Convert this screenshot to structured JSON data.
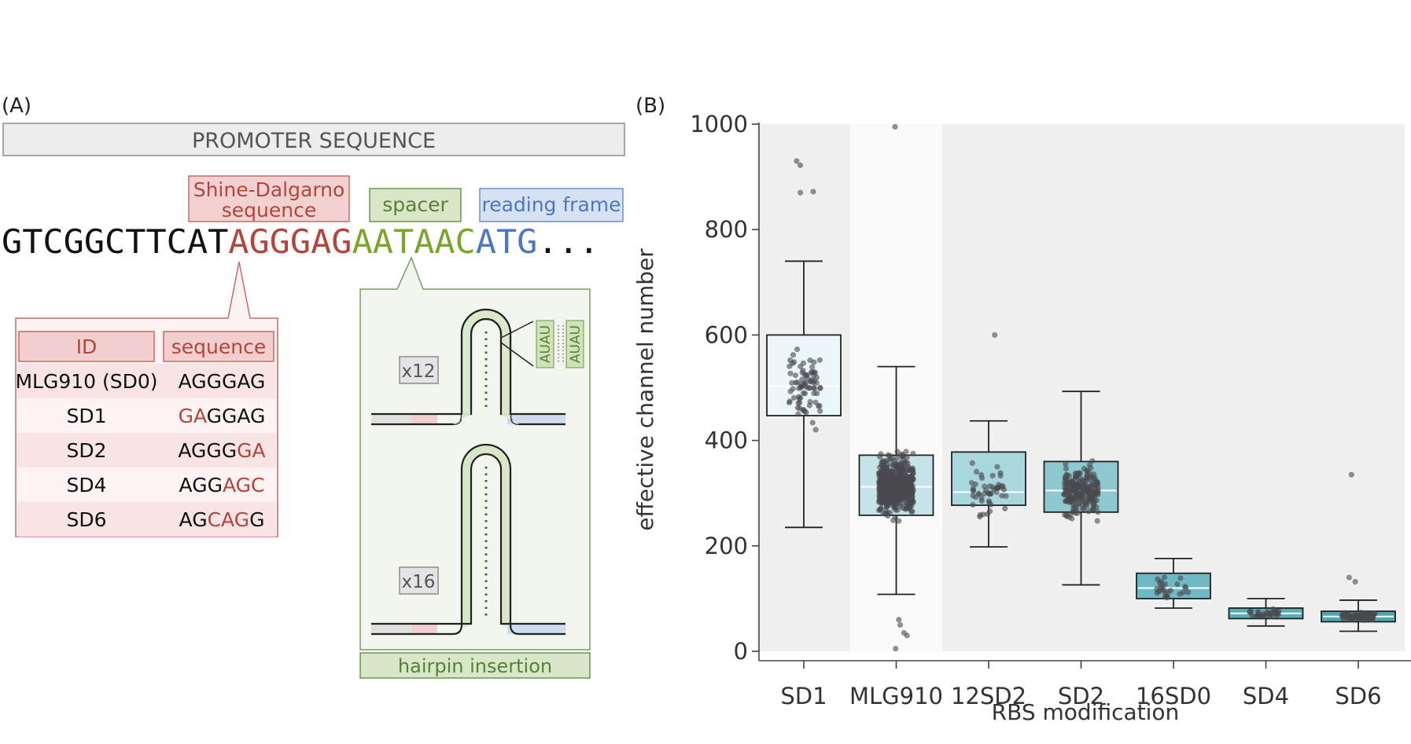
{
  "panel_a": {
    "label": "(A)",
    "promoter": "PROMOTER SEQUENCE",
    "sd_label": [
      "Shine-Dalgarno",
      "sequence"
    ],
    "spacer_label": "spacer",
    "frame_label": "reading frame",
    "sequence_parts": [
      {
        "text": "GTCGGCTTCAT",
        "color": "#111111"
      },
      {
        "text": "AGGGAG",
        "color": "#b5443c"
      },
      {
        "text": "AATAAC",
        "color": "#7aa62a"
      },
      {
        "text": "ATG",
        "color": "#4b77c4"
      },
      {
        "text": "...",
        "color": "#111111"
      }
    ],
    "table": {
      "col_id": "ID",
      "col_seq": "sequence",
      "rows": [
        {
          "id": "MLG910 (SD0)",
          "seq": [
            {
              "t": "AGGGAG",
              "mut": false
            }
          ]
        },
        {
          "id": "SD1",
          "seq": [
            {
              "t": "GA",
              "mut": true
            },
            {
              "t": "GGAG",
              "mut": false
            }
          ]
        },
        {
          "id": "SD2",
          "seq": [
            {
              "t": "AGGG",
              "mut": false
            },
            {
              "t": "GA",
              "mut": true
            }
          ]
        },
        {
          "id": "SD4",
          "seq": [
            {
              "t": "AGG",
              "mut": false
            },
            {
              "t": "AGC",
              "mut": true
            }
          ]
        },
        {
          "id": "SD6",
          "seq": [
            {
              "t": "AG",
              "mut": false
            },
            {
              "t": "CAG",
              "mut": true
            },
            {
              "t": "G",
              "mut": false
            }
          ]
        }
      ]
    },
    "hairpin_small_label": "x12",
    "hairpin_large_label": "x16",
    "pair_top": "AUAU",
    "pair_bottom": "AUAU",
    "hairpin_caption": "hairpin insertion",
    "colors": {
      "sd": "#b5443c",
      "spacer": "#5a7f35",
      "frame": "#4b77c4",
      "mutation": "#b5443c"
    }
  },
  "panel_b_label": "(B)",
  "chart_data": {
    "type": "box",
    "xlabel": "RBS modification",
    "ylabel": "effective channel number",
    "ylim": [
      0,
      1000
    ],
    "yticks": [
      0,
      200,
      400,
      600,
      800,
      1000
    ],
    "categories": [
      "SD1",
      "MLG910",
      "12SD2",
      "SD2",
      "16SD0",
      "SD4",
      "SD6"
    ],
    "boxes": [
      {
        "name": "SD1",
        "min": 235,
        "q1": 447,
        "median": 503,
        "q3": 600,
        "max": 740,
        "color": "#eaf6f8"
      },
      {
        "name": "MLG910",
        "min": 108,
        "q1": 258,
        "median": 312,
        "q3": 372,
        "max": 540,
        "color": "#c5e4e9"
      },
      {
        "name": "12SD2",
        "min": 198,
        "q1": 277,
        "median": 302,
        "q3": 378,
        "max": 437,
        "color": "#a9d7de"
      },
      {
        "name": "SD2",
        "min": 126,
        "q1": 264,
        "median": 305,
        "q3": 360,
        "max": 493,
        "color": "#8ec9d2"
      },
      {
        "name": "16SD0",
        "min": 82,
        "q1": 100,
        "median": 120,
        "q3": 148,
        "max": 176,
        "color": "#6fb9c4"
      },
      {
        "name": "SD4",
        "min": 48,
        "q1": 62,
        "median": 72,
        "q3": 82,
        "max": 100,
        "color": "#5aaeba"
      },
      {
        "name": "SD6",
        "min": 38,
        "q1": 56,
        "median": 66,
        "q3": 76,
        "max": 97,
        "color": "#4ca6b3"
      }
    ],
    "outliers": [
      {
        "category": "SD1",
        "values": [
          930,
          922,
          872,
          870
        ]
      },
      {
        "category": "MLG910",
        "values": [
          995,
          30,
          35,
          50,
          60,
          5
        ]
      },
      {
        "category": "12SD2",
        "values": [
          600
        ]
      },
      {
        "category": "SD6",
        "values": [
          335,
          140,
          132
        ]
      }
    ],
    "points_per_category": [
      80,
      600,
      50,
      220,
      25,
      30,
      90
    ],
    "background_bands": [
      "#f0f0f0",
      "#fafafa",
      "#f0f0f0",
      "#f0f0f0",
      "#f0f0f0",
      "#f0f0f0",
      "#f0f0f0"
    ],
    "point_color": "#4a4a4e",
    "grid": false
  }
}
